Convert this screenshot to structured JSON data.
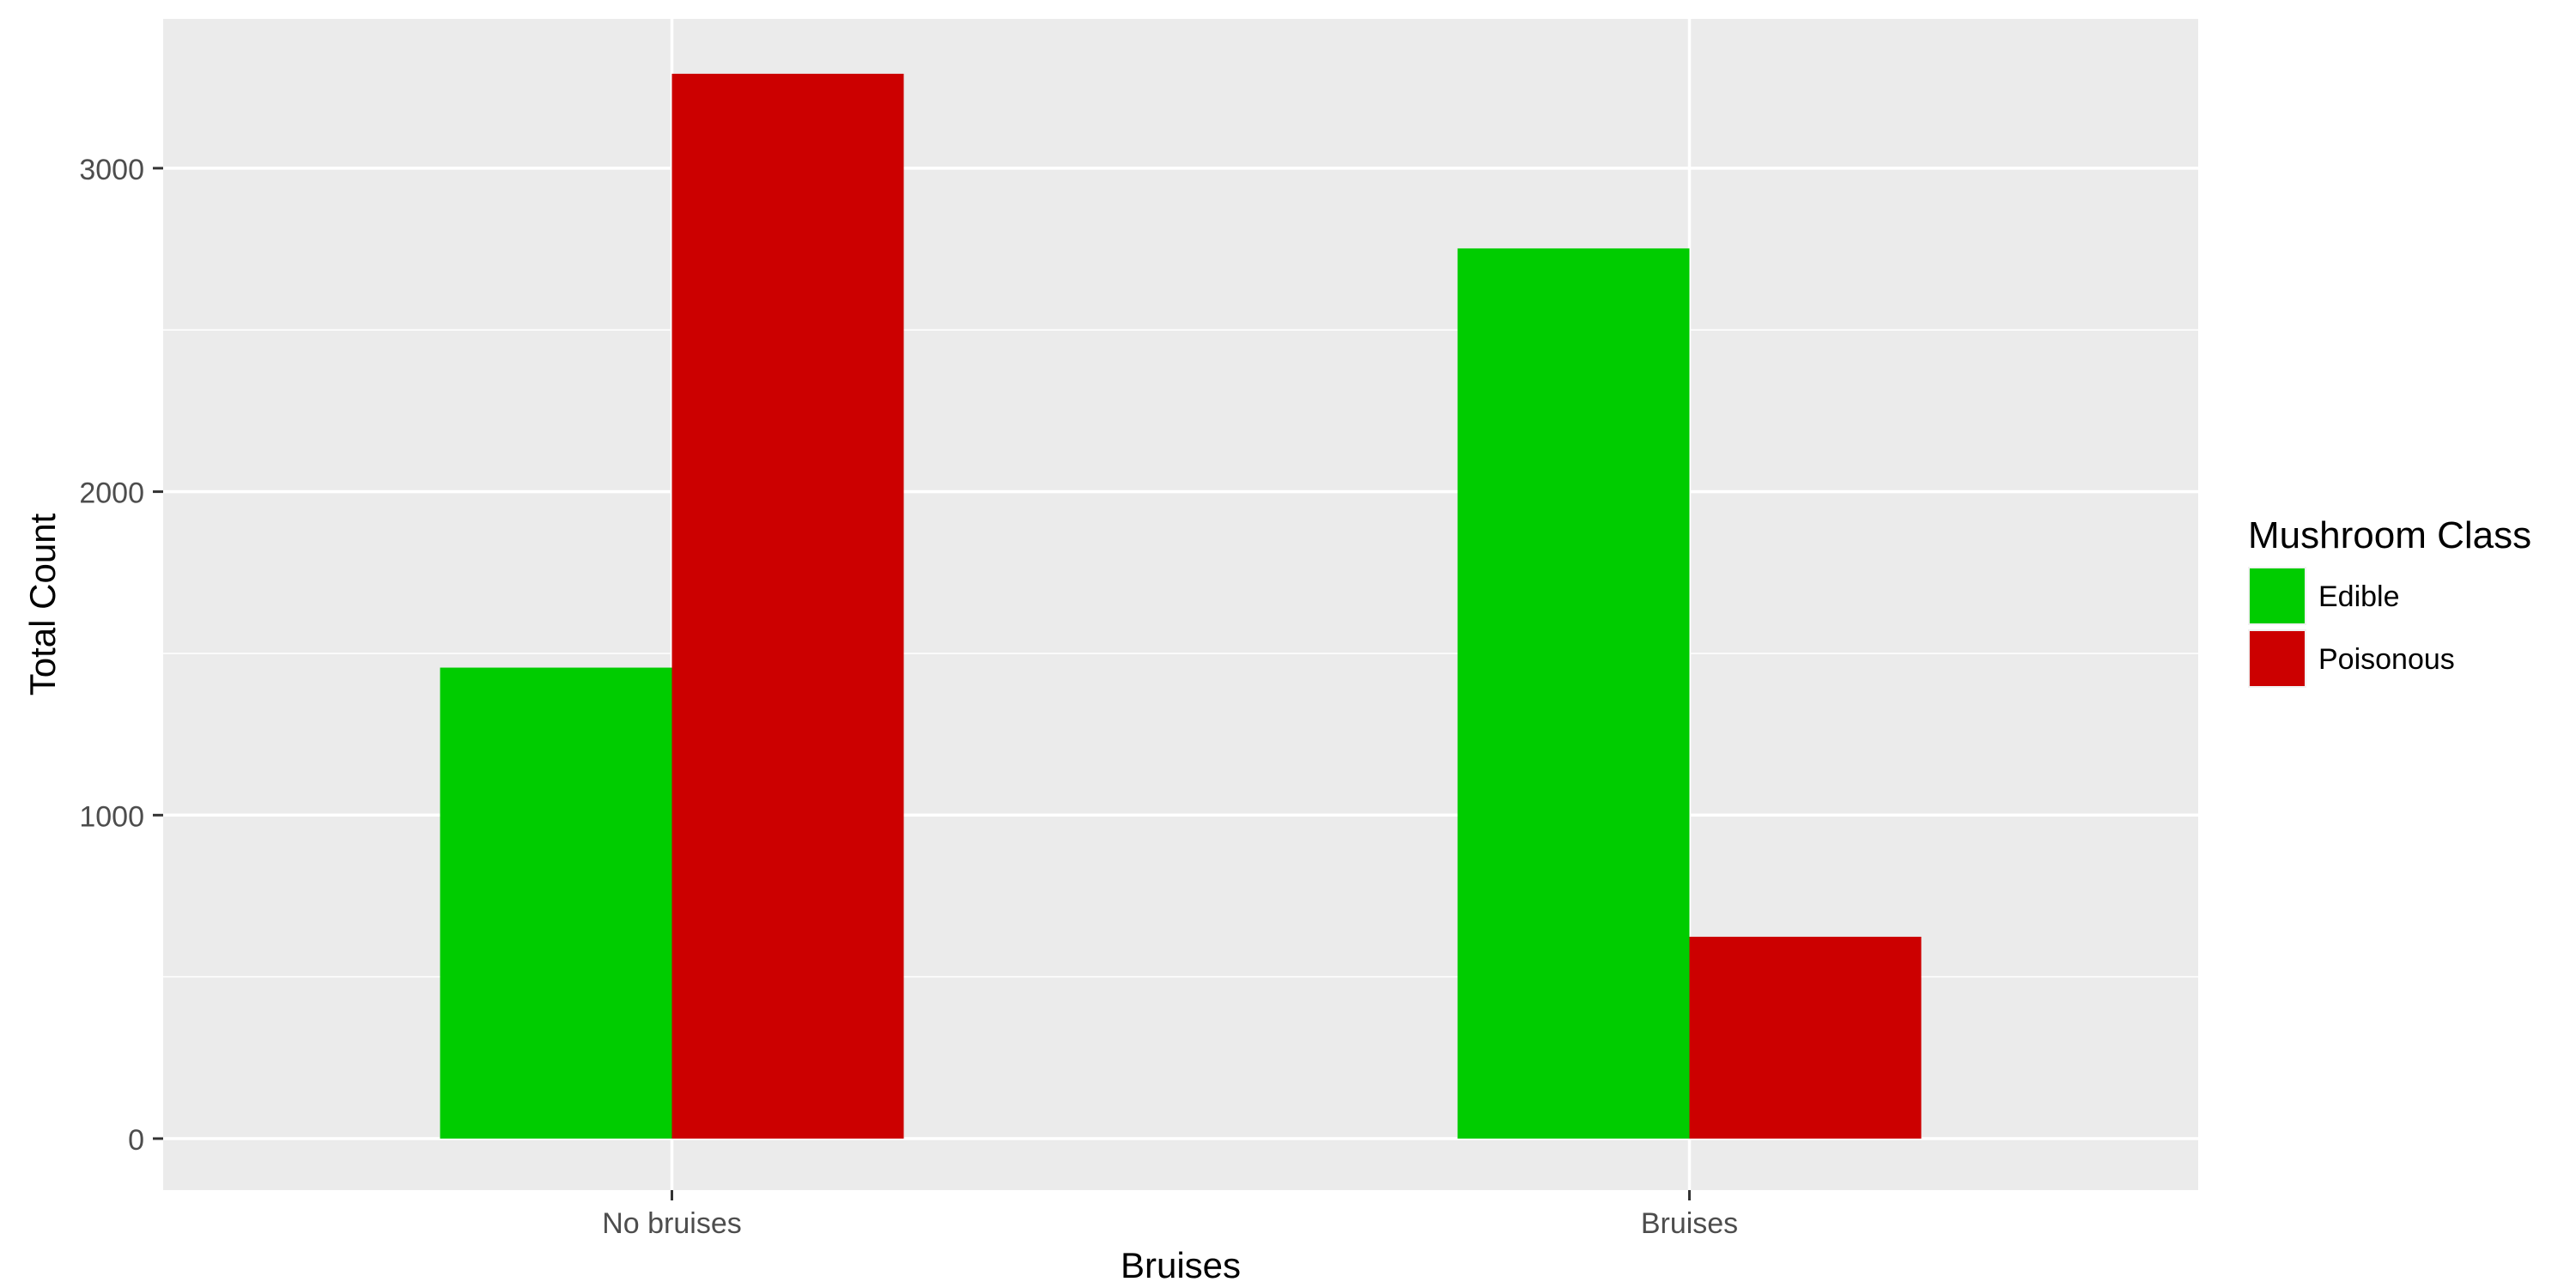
{
  "chart_data": {
    "type": "bar",
    "title": "",
    "xlabel": "Bruises",
    "ylabel": "Total Count",
    "categories": [
      "No bruises",
      "Bruises"
    ],
    "series": [
      {
        "name": "Edible",
        "color": "#00CC00",
        "values": [
          1456,
          2752
        ]
      },
      {
        "name": "Poisonous",
        "color": "#CC0000",
        "values": [
          3292,
          624
        ]
      }
    ],
    "ylim": [
      0,
      3300
    ],
    "yticks": [
      0,
      1000,
      2000,
      3000
    ],
    "yticks_minor": [
      500,
      1500,
      2500
    ],
    "grid": true,
    "legend": {
      "title": "Mushroom Class",
      "position": "right"
    },
    "panel_background": "#EBEBEB",
    "grid_color": "#FFFFFF"
  }
}
